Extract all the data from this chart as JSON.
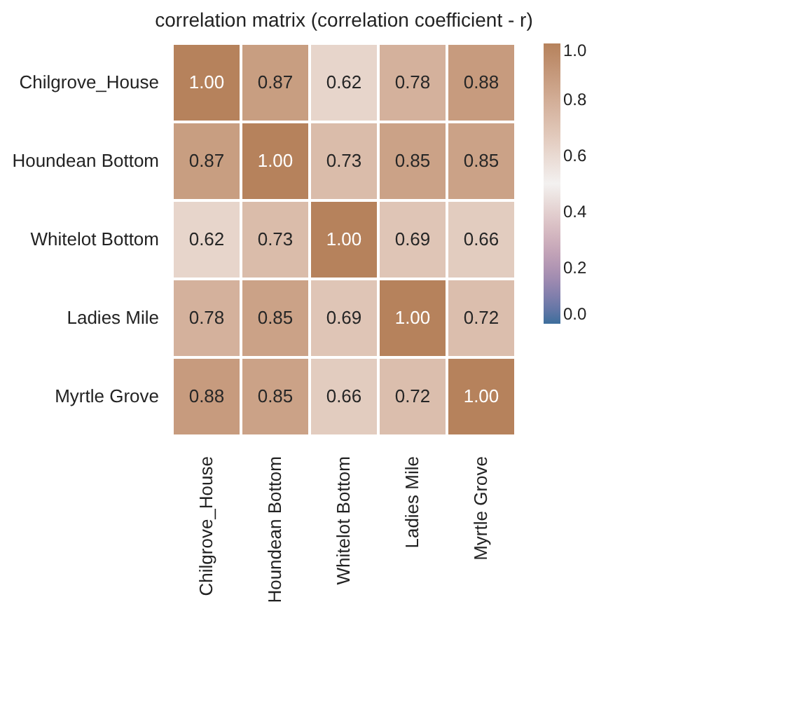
{
  "chart_data": {
    "type": "heatmap",
    "title": "correlation matrix (correlation coefficient - r)",
    "categories": [
      "Chilgrove_House",
      "Houndean Bottom",
      "Whitelot Bottom",
      "Ladies Mile",
      "Myrtle Grove"
    ],
    "y_categories": [
      "Chilgrove_House",
      "Houndean Bottom",
      "Whitelot Bottom",
      "Ladies Mile",
      "Myrtle Grove"
    ],
    "cells": [
      [
        1.0,
        0.87,
        0.62,
        0.78,
        0.88
      ],
      [
        0.87,
        1.0,
        0.73,
        0.85,
        0.85
      ],
      [
        0.62,
        0.73,
        1.0,
        0.69,
        0.66
      ],
      [
        0.78,
        0.85,
        0.69,
        1.0,
        0.72
      ],
      [
        0.88,
        0.85,
        0.66,
        0.72,
        1.0
      ]
    ],
    "cell_labels": [
      [
        "1.00",
        "0.87",
        "0.62",
        "0.78",
        "0.88"
      ],
      [
        "0.87",
        "1.00",
        "0.73",
        "0.85",
        "0.85"
      ],
      [
        "0.62",
        "0.73",
        "1.00",
        "0.69",
        "0.66"
      ],
      [
        "0.78",
        "0.85",
        "0.69",
        "1.00",
        "0.72"
      ],
      [
        "0.88",
        "0.85",
        "0.66",
        "0.72",
        "1.00"
      ]
    ],
    "clim": [
      0,
      1
    ],
    "cticks": [
      {
        "value": 0,
        "label": "0.0"
      },
      {
        "value": 0.2,
        "label": "0.2"
      },
      {
        "value": 0.4,
        "label": "0.4"
      },
      {
        "value": 0.6,
        "label": "0.6"
      },
      {
        "value": 0.8,
        "label": "0.8"
      },
      {
        "value": 1,
        "label": "1.0"
      }
    ]
  }
}
